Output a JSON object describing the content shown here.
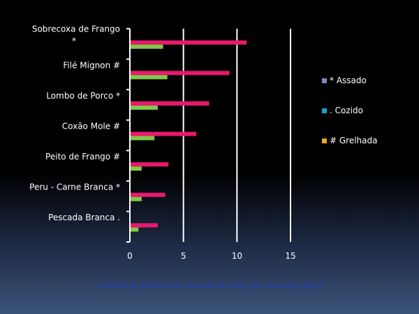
{
  "chart_data": {
    "type": "bar",
    "orientation": "horizontal",
    "categories": [
      "Sobrecoxa de Frango *",
      "Filé Mignon #",
      "Lombo de Porco *",
      "Coxão Mole #",
      "Peito de Frango #",
      "Peru - Carne Branca *",
      "Pescada Branca ."
    ],
    "category_lines": [
      [
        "Sobrecoxa de Frango",
        "*"
      ],
      [
        "Filé Mignon #"
      ],
      [
        "Lombo de Porco *"
      ],
      [
        "Coxão Mole #"
      ],
      [
        "Peito de Frango #"
      ],
      [
        "Peru - Carne Branca *"
      ],
      [
        "Pescada Branca ."
      ]
    ],
    "series": [
      {
        "values": [
          10.9,
          9.3,
          7.4,
          6.2,
          3.6,
          3.3,
          2.6
        ],
        "color": "#e8196e"
      },
      {
        "values": [
          3.1,
          3.5,
          2.6,
          2.3,
          1.1,
          1.1,
          0.8
        ],
        "color": "#82c84a"
      }
    ],
    "xlim": [
      0,
      15
    ],
    "xticks": [
      0,
      5,
      10,
      15
    ],
    "grid": true,
    "legend": [
      {
        "label": "* Assado",
        "color": "#7a88c0"
      },
      {
        "label": ". Cozido",
        "color": "#1f9fc8"
      },
      {
        "label": "# Grelhada",
        "color": "#f0a820"
      }
    ],
    "legend_position": "right",
    "caption": "Conteúdo de gordura total e saturada em vários tipos de carnes (100 g)"
  }
}
